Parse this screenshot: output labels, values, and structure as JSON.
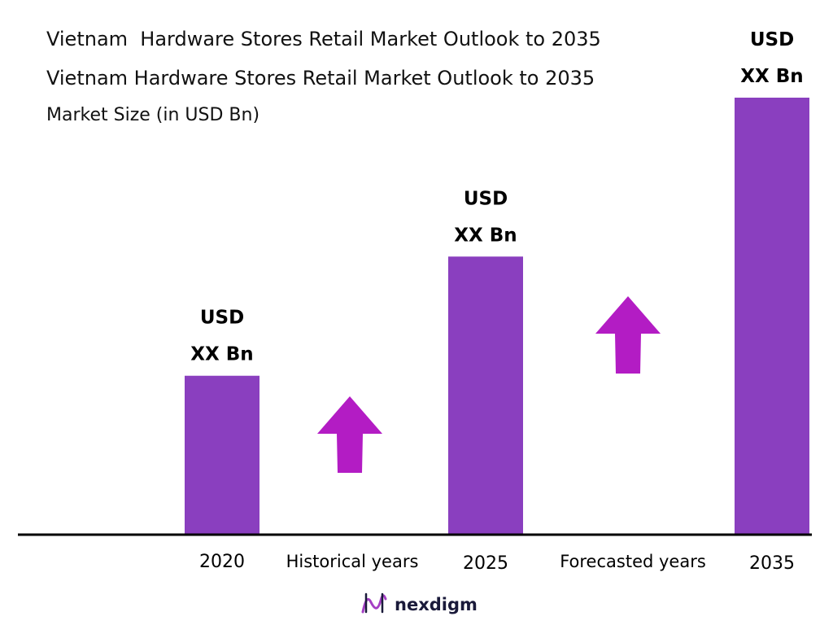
{
  "colors": {
    "bar": "#8a3fbf",
    "arrow": "#b31cc4",
    "axis": "#000000",
    "brand_accent": "#a43fc4"
  },
  "chart_data": {
    "type": "bar",
    "title_lines": [
      "Vietnam  Hardware Stores Retail Market Outlook to 2035",
      "Vietnam Hardware Stores Retail Market Outlook to 2035"
    ],
    "subtitle": "Market Size (in USD Bn)",
    "categories": [
      "2020",
      "2025",
      "2035"
    ],
    "values": [
      6,
      10.5,
      16.5
    ],
    "ylim": [
      0,
      16.5
    ],
    "grid": false,
    "data_labels": [
      [
        "USD",
        "XX Bn"
      ],
      [
        "USD",
        "XX Bn"
      ],
      [
        "USD",
        "XX Bn"
      ]
    ],
    "period_labels": [
      "Historical years",
      "Forecasted years"
    ],
    "arrow_icon": "up-arrow-icon"
  },
  "brand": {
    "name": "nexdigm",
    "icon": "nexdigm-logo-icon"
  }
}
